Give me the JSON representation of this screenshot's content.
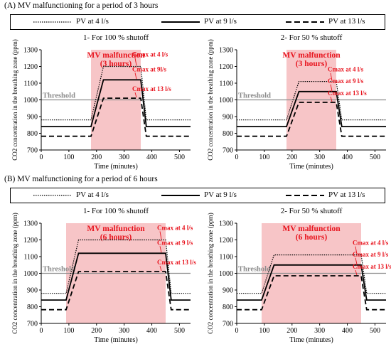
{
  "sections": [
    {
      "title": "(A) MV malfunctioning  for a period of 3 hours"
    },
    {
      "title": "(B) MV malfunctioning  for a period of 6 hours"
    }
  ],
  "legend": [
    {
      "label": "PV at 4 l/s",
      "style": "dotted"
    },
    {
      "label": "PV at 9 l/s",
      "style": "solid"
    },
    {
      "label": "PV at 13 l/s",
      "style": "dashed"
    }
  ],
  "colors": {
    "shade": "#f7c5c7",
    "annotation": "#e8141e",
    "threshold": "#8c8c8c",
    "line": "#000000"
  },
  "chart_data": [
    {
      "type": "line",
      "title": "1- For 100 % shutoff",
      "xlabel": "Time  (minutes)",
      "ylabel": "CO2 concentration  in the breathing zone (ppm)",
      "xlim": [
        0,
        540
      ],
      "ylim": [
        700,
        1300
      ],
      "xticks": [
        0,
        100,
        200,
        300,
        400,
        500
      ],
      "yticks": [
        700,
        800,
        900,
        1000,
        1100,
        1200,
        1300
      ],
      "malfunction_period": [
        180,
        360
      ],
      "malfunction_label": [
        "MV malfunction",
        "(3 hours)"
      ],
      "threshold": 1000,
      "threshold_label": "Threshold",
      "series": [
        {
          "name": "PV at 4 l/s",
          "style": "dotted",
          "baseline": 880,
          "cmax": 1200,
          "cmax_label": "Cmax at 4 l/s"
        },
        {
          "name": "PV at 9 l/s",
          "style": "solid",
          "baseline": 840,
          "cmax": 1120,
          "cmax_label": "Cmax at 9l/s"
        },
        {
          "name": "PV at 13 l/s",
          "style": "dashed",
          "baseline": 782,
          "cmax": 1010,
          "cmax_label": "Cmax at 13 l/s"
        }
      ]
    },
    {
      "type": "line",
      "title": "2- For 50 % shutoff",
      "xlabel": "Time  (minutes)",
      "ylabel": "CO2 concentration  in the breathing zone (ppm)",
      "xlim": [
        0,
        540
      ],
      "ylim": [
        700,
        1300
      ],
      "xticks": [
        0,
        100,
        200,
        300,
        400,
        500
      ],
      "yticks": [
        700,
        800,
        900,
        1000,
        1100,
        1200,
        1300
      ],
      "malfunction_period": [
        180,
        360
      ],
      "malfunction_label": [
        "MV malfunction",
        "(3 hours)"
      ],
      "threshold": 1000,
      "threshold_label": "Threshold",
      "series": [
        {
          "name": "PV at 4 l/s",
          "style": "dotted",
          "baseline": 880,
          "cmax": 1110,
          "cmax_label": "Cmax at 4 l/s"
        },
        {
          "name": "PV at 9 l/s",
          "style": "solid",
          "baseline": 840,
          "cmax": 1050,
          "cmax_label": "Cmax at 9 l/s"
        },
        {
          "name": "PV at 13 l/s",
          "style": "dashed",
          "baseline": 782,
          "cmax": 985,
          "cmax_label": "Cmax at 13 l/s"
        }
      ]
    },
    {
      "type": "line",
      "title": "1- For 100 % shutoff",
      "xlabel": "Time  (minutes)",
      "ylabel": "CO2 concentration  in the breathing zone (ppm)",
      "xlim": [
        0,
        540
      ],
      "ylim": [
        700,
        1300
      ],
      "xticks": [
        0,
        100,
        200,
        300,
        400,
        500
      ],
      "yticks": [
        700,
        800,
        900,
        1000,
        1100,
        1200,
        1300
      ],
      "malfunction_period": [
        90,
        450
      ],
      "malfunction_label": [
        "MV malfunction",
        "(6 hours)"
      ],
      "threshold": 1000,
      "threshold_label": "Threshold",
      "series": [
        {
          "name": "PV at 4 l/s",
          "style": "dotted",
          "baseline": 880,
          "cmax": 1200,
          "cmax_label": "Cmax at 4 l/s"
        },
        {
          "name": "PV at 9 l/s",
          "style": "solid",
          "baseline": 840,
          "cmax": 1120,
          "cmax_label": "Cmax at 9 l/s"
        },
        {
          "name": "PV at 13 l/s",
          "style": "dashed",
          "baseline": 782,
          "cmax": 1010,
          "cmax_label": "Cmax at 13 l/s"
        }
      ]
    },
    {
      "type": "line",
      "title": "2- For 50 % shutoff",
      "xlabel": "Time  (minutes)",
      "ylabel": "CO2 concentration  in the breathing zone (ppm)",
      "xlim": [
        0,
        540
      ],
      "ylim": [
        700,
        1300
      ],
      "xticks": [
        0,
        100,
        200,
        300,
        400,
        500
      ],
      "yticks": [
        700,
        800,
        900,
        1000,
        1100,
        1200,
        1300
      ],
      "malfunction_period": [
        90,
        450
      ],
      "malfunction_label": [
        "MV malfunction",
        "(6 hours)"
      ],
      "threshold": 1000,
      "threshold_label": "Threshold",
      "series": [
        {
          "name": "PV at 4 l/s",
          "style": "dotted",
          "baseline": 880,
          "cmax": 1110,
          "cmax_label": "Cmax at 4 l/s"
        },
        {
          "name": "PV at 9 l/s",
          "style": "solid",
          "baseline": 840,
          "cmax": 1050,
          "cmax_label": "Cmax at 9 l/s"
        },
        {
          "name": "PV at 13 l/s",
          "style": "dashed",
          "baseline": 782,
          "cmax": 985,
          "cmax_label": "Cmax at 13 l/s"
        }
      ]
    }
  ]
}
